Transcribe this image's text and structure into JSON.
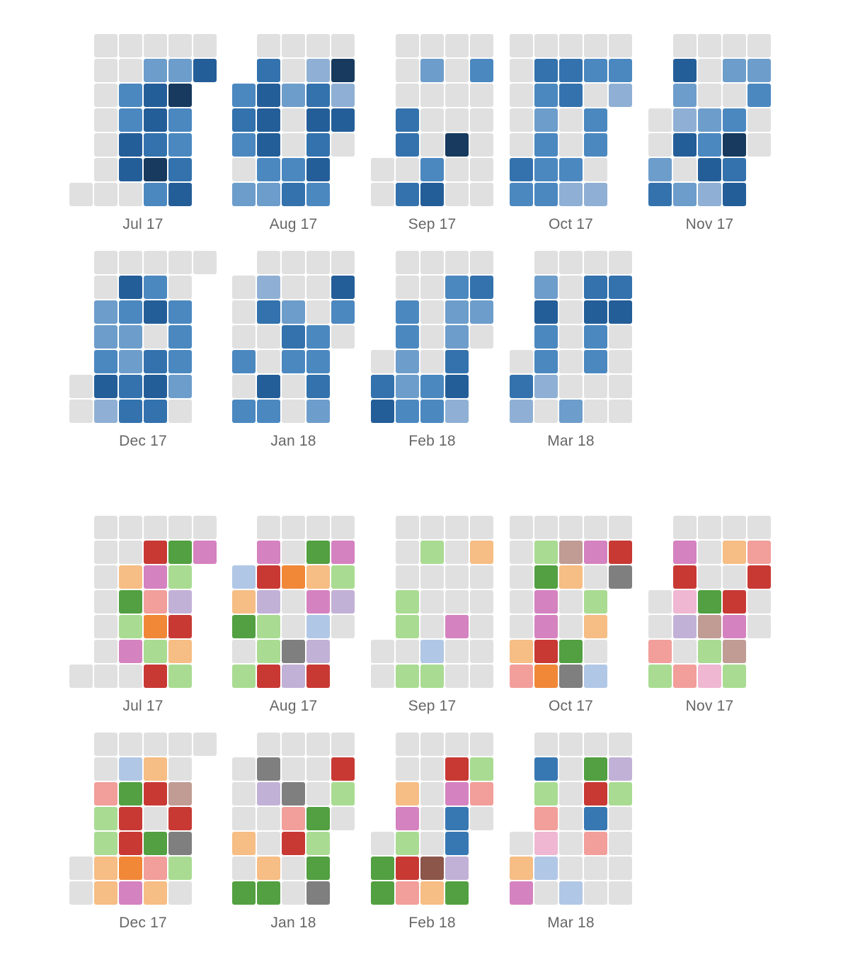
{
  "chart_data": [
    {
      "type": "heatmap",
      "colors": {
        "empty": "#e0e0e0",
        "palette": {
          "1": "#8fb0d4",
          "2": "#6d9dcb",
          "3": "#4b88c0",
          "4": "#3372ad",
          "5": "#245e98",
          "6": "#173a5e"
        }
      },
      "months": [
        {
          "label": "Jul 17",
          "grid": [
            [
              null,
              0,
              0,
              0,
              0,
              0
            ],
            [
              null,
              0,
              0,
              2,
              2,
              5
            ],
            [
              null,
              0,
              3,
              5,
              6,
              null
            ],
            [
              null,
              0,
              3,
              5,
              3,
              null
            ],
            [
              null,
              0,
              5,
              4,
              3,
              null
            ],
            [
              null,
              0,
              5,
              6,
              4,
              null
            ],
            [
              0,
              0,
              0,
              3,
              5,
              null
            ]
          ]
        },
        {
          "label": "Aug 17",
          "grid": [
            [
              null,
              0,
              0,
              0,
              0
            ],
            [
              null,
              4,
              0,
              1,
              6
            ],
            [
              3,
              5,
              2,
              4,
              1
            ],
            [
              4,
              5,
              0,
              5,
              5
            ],
            [
              3,
              5,
              0,
              4,
              0
            ],
            [
              0,
              3,
              3,
              5,
              null
            ],
            [
              2,
              2,
              4,
              3,
              null
            ]
          ]
        },
        {
          "label": "Sep 17",
          "grid": [
            [
              null,
              0,
              0,
              0,
              0
            ],
            [
              null,
              0,
              2,
              0,
              3
            ],
            [
              null,
              0,
              0,
              0,
              0
            ],
            [
              null,
              4,
              0,
              0,
              0
            ],
            [
              null,
              4,
              0,
              6,
              0
            ],
            [
              0,
              0,
              3,
              0,
              0
            ],
            [
              0,
              4,
              5,
              0,
              0
            ]
          ]
        },
        {
          "label": "Oct 17",
          "grid": [
            [
              0,
              0,
              0,
              0,
              0
            ],
            [
              0,
              4,
              4,
              3,
              3
            ],
            [
              0,
              3,
              4,
              0,
              1
            ],
            [
              0,
              2,
              0,
              3,
              null
            ],
            [
              0,
              3,
              0,
              3,
              null
            ],
            [
              4,
              3,
              3,
              0,
              null
            ],
            [
              3,
              3,
              1,
              1,
              null
            ]
          ]
        },
        {
          "label": "Nov 17",
          "grid": [
            [
              null,
              0,
              0,
              0,
              0
            ],
            [
              null,
              5,
              0,
              2,
              2
            ],
            [
              null,
              2,
              0,
              0,
              3
            ],
            [
              0,
              1,
              2,
              3,
              0
            ],
            [
              0,
              5,
              3,
              6,
              0
            ],
            [
              2,
              0,
              5,
              4,
              null
            ],
            [
              4,
              2,
              1,
              5,
              null
            ]
          ]
        },
        {
          "label": "Dec 17",
          "grid": [
            [
              null,
              0,
              0,
              0,
              0,
              0
            ],
            [
              null,
              0,
              5,
              3,
              0,
              null
            ],
            [
              null,
              2,
              3,
              5,
              3,
              null
            ],
            [
              null,
              2,
              2,
              0,
              3,
              null
            ],
            [
              null,
              3,
              2,
              4,
              3,
              null
            ],
            [
              0,
              5,
              4,
              5,
              2,
              null
            ],
            [
              0,
              1,
              4,
              4,
              0,
              null
            ]
          ]
        },
        {
          "label": "Jan 18",
          "grid": [
            [
              null,
              0,
              0,
              0,
              0
            ],
            [
              0,
              1,
              0,
              0,
              5
            ],
            [
              0,
              4,
              2,
              0,
              3
            ],
            [
              0,
              0,
              4,
              3,
              0
            ],
            [
              3,
              0,
              3,
              3,
              null
            ],
            [
              0,
              5,
              0,
              4,
              null
            ],
            [
              3,
              3,
              0,
              2,
              null
            ]
          ]
        },
        {
          "label": "Feb 18",
          "grid": [
            [
              null,
              0,
              0,
              0,
              0
            ],
            [
              null,
              0,
              0,
              3,
              4
            ],
            [
              null,
              3,
              0,
              2,
              2
            ],
            [
              null,
              3,
              0,
              2,
              0
            ],
            [
              0,
              2,
              0,
              4,
              null
            ],
            [
              4,
              2,
              3,
              5,
              null
            ],
            [
              5,
              3,
              3,
              1,
              null
            ]
          ]
        },
        {
          "label": "Mar 18",
          "grid": [
            [
              null,
              0,
              0,
              0,
              0
            ],
            [
              null,
              2,
              0,
              4,
              4
            ],
            [
              null,
              5,
              0,
              5,
              5
            ],
            [
              null,
              3,
              0,
              3,
              0
            ],
            [
              0,
              3,
              0,
              3,
              0
            ],
            [
              4,
              1,
              0,
              0,
              0
            ],
            [
              1,
              0,
              2,
              0,
              0
            ]
          ]
        }
      ]
    },
    {
      "type": "heatmap",
      "colors": {
        "empty": "#e0e0e0",
        "palette": {
          "red": "#c83934",
          "green": "#52a041",
          "pink": "#d582c0",
          "peach": "#f6bd84",
          "lightgreen": "#a9dc92",
          "salmon": "#f29e9a",
          "lavender": "#c2b1d6",
          "orange": "#f08838",
          "lightblue": "#b1c7e6",
          "gray": "#7f7f7f",
          "taupe": "#c09c95",
          "lightpink": "#efb7d1",
          "blue": "#3778b3",
          "brown": "#8c564b"
        }
      },
      "months": [
        {
          "label": "Jul 17",
          "grid": [
            [
              null,
              "empty",
              "empty",
              "empty",
              "empty",
              "empty"
            ],
            [
              null,
              "empty",
              "empty",
              "red",
              "green",
              "pink"
            ],
            [
              null,
              "empty",
              "peach",
              "pink",
              "lightgreen",
              null
            ],
            [
              null,
              "empty",
              "green",
              "salmon",
              "lavender",
              null
            ],
            [
              null,
              "empty",
              "lightgreen",
              "orange",
              "red",
              null
            ],
            [
              null,
              "empty",
              "pink",
              "lightgreen",
              "peach",
              null
            ],
            [
              "empty",
              "empty",
              "empty",
              "red",
              "lightgreen",
              null
            ]
          ]
        },
        {
          "label": "Aug 17",
          "grid": [
            [
              null,
              "empty",
              "empty",
              "empty",
              "empty"
            ],
            [
              null,
              "pink",
              "empty",
              "green",
              "pink"
            ],
            [
              "lightblue",
              "red",
              "orange",
              "peach",
              "lightgreen"
            ],
            [
              "peach",
              "lavender",
              "empty",
              "pink",
              "lavender"
            ],
            [
              "green",
              "lightgreen",
              "empty",
              "lightblue",
              "empty"
            ],
            [
              "empty",
              "lightgreen",
              "gray",
              "lavender",
              null
            ],
            [
              "lightgreen",
              "red",
              "lavender",
              "red",
              null
            ]
          ]
        },
        {
          "label": "Sep 17",
          "grid": [
            [
              null,
              "empty",
              "empty",
              "empty",
              "empty"
            ],
            [
              null,
              "empty",
              "lightgreen",
              "empty",
              "peach"
            ],
            [
              null,
              "empty",
              "empty",
              "empty",
              "empty"
            ],
            [
              null,
              "lightgreen",
              "empty",
              "empty",
              "empty"
            ],
            [
              null,
              "lightgreen",
              "empty",
              "pink",
              "empty"
            ],
            [
              "empty",
              "empty",
              "lightblue",
              "empty",
              "empty"
            ],
            [
              "empty",
              "lightgreen",
              "lightgreen",
              "empty",
              "empty"
            ]
          ]
        },
        {
          "label": "Oct 17",
          "grid": [
            [
              "empty",
              "empty",
              "empty",
              "empty",
              "empty"
            ],
            [
              "empty",
              "lightgreen",
              "taupe",
              "pink",
              "red"
            ],
            [
              "empty",
              "green",
              "peach",
              "empty",
              "gray"
            ],
            [
              "empty",
              "pink",
              "empty",
              "lightgreen",
              null
            ],
            [
              "empty",
              "pink",
              "empty",
              "peach",
              null
            ],
            [
              "peach",
              "red",
              "green",
              "empty",
              null
            ],
            [
              "salmon",
              "orange",
              "gray",
              "lightblue",
              null
            ]
          ]
        },
        {
          "label": "Nov 17",
          "grid": [
            [
              null,
              "empty",
              "empty",
              "empty",
              "empty"
            ],
            [
              null,
              "pink",
              "empty",
              "peach",
              "salmon"
            ],
            [
              null,
              "red",
              "empty",
              "empty",
              "red"
            ],
            [
              "empty",
              "lightpink",
              "green",
              "red",
              "empty"
            ],
            [
              "empty",
              "lavender",
              "taupe",
              "pink",
              "empty"
            ],
            [
              "salmon",
              "empty",
              "lightgreen",
              "taupe",
              null
            ],
            [
              "lightgreen",
              "salmon",
              "lightpink",
              "lightgreen",
              null
            ]
          ]
        },
        {
          "label": "Dec 17",
          "grid": [
            [
              null,
              "empty",
              "empty",
              "empty",
              "empty",
              "empty"
            ],
            [
              null,
              "empty",
              "lightblue",
              "peach",
              "empty",
              null
            ],
            [
              null,
              "salmon",
              "green",
              "red",
              "taupe",
              null
            ],
            [
              null,
              "lightgreen",
              "red",
              "empty",
              "red",
              null
            ],
            [
              null,
              "lightgreen",
              "red",
              "green",
              "gray",
              null
            ],
            [
              "empty",
              "peach",
              "orange",
              "salmon",
              "lightgreen",
              null
            ],
            [
              "empty",
              "peach",
              "pink",
              "peach",
              "empty",
              null
            ]
          ]
        },
        {
          "label": "Jan 18",
          "grid": [
            [
              null,
              "empty",
              "empty",
              "empty",
              "empty"
            ],
            [
              "empty",
              "gray",
              "empty",
              "empty",
              "red"
            ],
            [
              "empty",
              "lavender",
              "gray",
              "empty",
              "lightgreen"
            ],
            [
              "empty",
              "empty",
              "salmon",
              "green",
              "empty"
            ],
            [
              "peach",
              "empty",
              "red",
              "lightgreen",
              null
            ],
            [
              "empty",
              "peach",
              "empty",
              "green",
              null
            ],
            [
              "green",
              "green",
              "empty",
              "gray",
              null
            ]
          ]
        },
        {
          "label": "Feb 18",
          "grid": [
            [
              null,
              "empty",
              "empty",
              "empty",
              "empty"
            ],
            [
              null,
              "empty",
              "empty",
              "red",
              "lightgreen"
            ],
            [
              null,
              "peach",
              "empty",
              "pink",
              "salmon"
            ],
            [
              null,
              "pink",
              "empty",
              "blue",
              "empty"
            ],
            [
              "empty",
              "lightgreen",
              "empty",
              "blue",
              null
            ],
            [
              "green",
              "red",
              "brown",
              "lavender",
              null
            ],
            [
              "green",
              "salmon",
              "peach",
              "green",
              null
            ]
          ]
        },
        {
          "label": "Mar 18",
          "grid": [
            [
              null,
              "empty",
              "empty",
              "empty",
              "empty"
            ],
            [
              null,
              "blue",
              "empty",
              "green",
              "lavender"
            ],
            [
              null,
              "lightgreen",
              "empty",
              "red",
              "lightgreen"
            ],
            [
              null,
              "salmon",
              "empty",
              "blue",
              "empty"
            ],
            [
              "empty",
              "lightpink",
              "empty",
              "salmon",
              "empty"
            ],
            [
              "peach",
              "lightblue",
              "empty",
              "empty",
              "empty"
            ],
            [
              "pink",
              "empty",
              "lightblue",
              "empty",
              "empty"
            ]
          ]
        }
      ]
    }
  ]
}
